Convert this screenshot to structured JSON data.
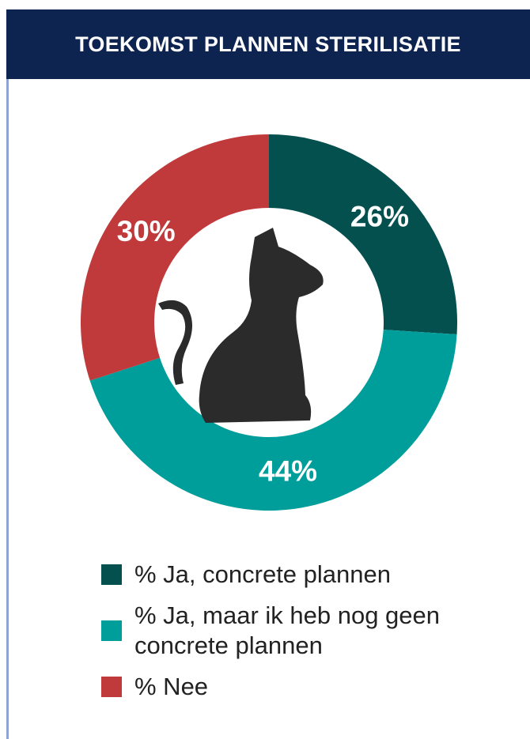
{
  "chart_data": {
    "type": "pie",
    "title": "TOEKOMST PLANNEN STERILISATIE",
    "categories": [
      "% Ja, concrete plannen",
      "% Ja, maar ik heb nog geen concrete plannen",
      "% Nee"
    ],
    "values": [
      26,
      44,
      30
    ],
    "value_labels": [
      "26%",
      "44%",
      "30%"
    ],
    "colors": [
      "#03504f",
      "#009e9a",
      "#c0393b"
    ]
  }
}
